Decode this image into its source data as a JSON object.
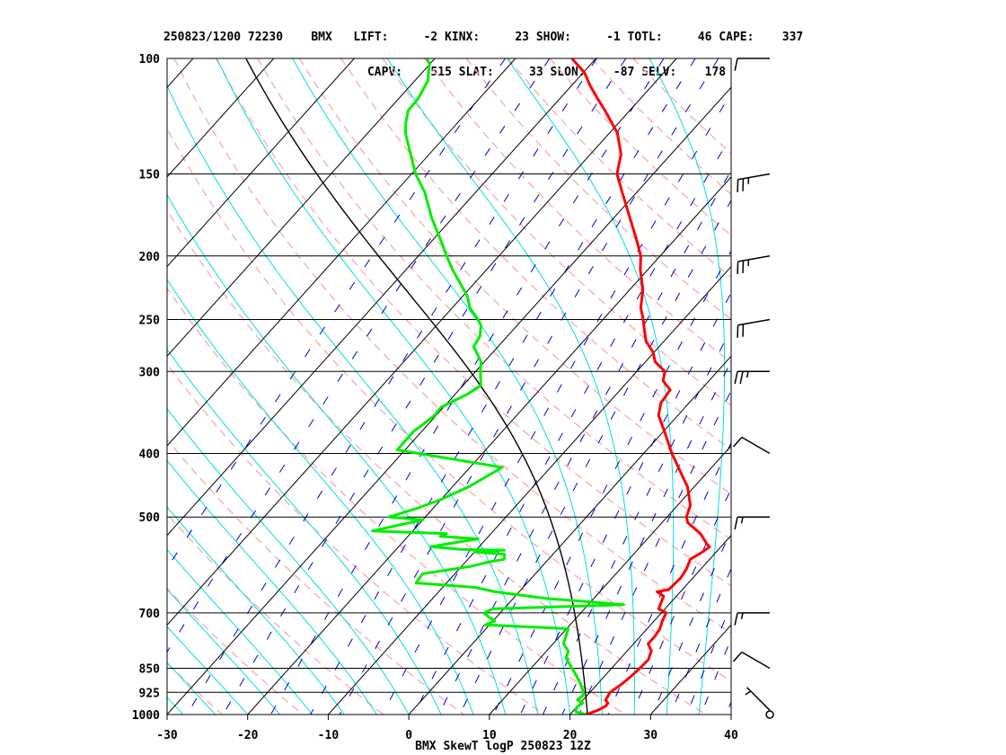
{
  "header": {
    "line1": "250823/1200 72230    BMX   LIFT:     -2 KINX:     23 SHOW:     -1 TOTL:     46 CAPE:    337",
    "line2": "                             CAPV:    515 SLAT:     33 SLON:    -87 SELV:    178"
  },
  "chart_data": {
    "type": "line",
    "title": "BMX SkewT logP 250823 12Z",
    "xlabel": "",
    "ylabel": "",
    "x_ticks": [
      -30,
      -20,
      -10,
      0,
      10,
      20,
      30,
      40
    ],
    "y_ticks": [
      100,
      150,
      200,
      250,
      300,
      400,
      500,
      700,
      850,
      925,
      1000
    ],
    "xlim": [
      -30,
      40
    ],
    "ylim": [
      1000,
      100
    ],
    "y_scale": "log",
    "grid": true,
    "colors": {
      "temperature": "#ff0000",
      "dewpoint": "#00ee00",
      "dry_adiabat": "#ffb0b8",
      "moist_adiabat": "#00e0e0",
      "mixing_ratio": "#0000d0",
      "isotherm": "#000000",
      "parcel": "#000000"
    },
    "series": [
      {
        "key": "temperature",
        "points": [
          [
            1000,
            22.0
          ],
          [
            985,
            23.0
          ],
          [
            970,
            23.5
          ],
          [
            960,
            23.4
          ],
          [
            950,
            22.8
          ],
          [
            925,
            22.5
          ],
          [
            900,
            23.0
          ],
          [
            875,
            23.3
          ],
          [
            850,
            23.5
          ],
          [
            825,
            23.6
          ],
          [
            800,
            23.0
          ],
          [
            780,
            21.8
          ],
          [
            760,
            21.8
          ],
          [
            740,
            21.6
          ],
          [
            720,
            21.0
          ],
          [
            700,
            20.6
          ],
          [
            690,
            19.2
          ],
          [
            675,
            18.8
          ],
          [
            660,
            18.4
          ],
          [
            650,
            17.1
          ],
          [
            645,
            18.3
          ],
          [
            620,
            18.5
          ],
          [
            600,
            18.2
          ],
          [
            580,
            17.6
          ],
          [
            565,
            18.3
          ],
          [
            555,
            18.6
          ],
          [
            550,
            18.0
          ],
          [
            530,
            16.0
          ],
          [
            510,
            13.2
          ],
          [
            500,
            12.4
          ],
          [
            480,
            11.6
          ],
          [
            450,
            9.2
          ],
          [
            400,
            3.5
          ],
          [
            370,
            0.1
          ],
          [
            350,
            -2.4
          ],
          [
            335,
            -3.5
          ],
          [
            320,
            -3.8
          ],
          [
            310,
            -5.7
          ],
          [
            300,
            -6.5
          ],
          [
            290,
            -8.8
          ],
          [
            280,
            -10.2
          ],
          [
            270,
            -12.2
          ],
          [
            260,
            -13.6
          ],
          [
            250,
            -15.0
          ],
          [
            240,
            -16.6
          ],
          [
            225,
            -18.4
          ],
          [
            210,
            -20.9
          ],
          [
            200,
            -22.4
          ],
          [
            190,
            -24.5
          ],
          [
            175,
            -28.0
          ],
          [
            160,
            -31.8
          ],
          [
            150,
            -34.5
          ],
          [
            140,
            -36.2
          ],
          [
            130,
            -39.0
          ],
          [
            120,
            -43.1
          ],
          [
            115,
            -45.4
          ],
          [
            110,
            -47.7
          ],
          [
            105,
            -49.9
          ],
          [
            100,
            -53.0
          ]
        ]
      },
      {
        "key": "dewpoint",
        "points": [
          [
            1000,
            22.0
          ],
          [
            990,
            20.4
          ],
          [
            975,
            20.0
          ],
          [
            960,
            20.3
          ],
          [
            950,
            19.3
          ],
          [
            935,
            19.5
          ],
          [
            925,
            19.2
          ],
          [
            900,
            18.0
          ],
          [
            875,
            16.6
          ],
          [
            850,
            15.1
          ],
          [
            820,
            13.2
          ],
          [
            800,
            12.7
          ],
          [
            780,
            11.3
          ],
          [
            740,
            10.2
          ],
          [
            730,
            -0.5
          ],
          [
            720,
            0.2
          ],
          [
            710,
            -1.0
          ],
          [
            700,
            -2.0
          ],
          [
            690,
            -1.4
          ],
          [
            680,
            14.4
          ],
          [
            665,
            4.0
          ],
          [
            650,
            -3.0
          ],
          [
            640,
            -6.0
          ],
          [
            630,
            -13.8
          ],
          [
            610,
            -14.0
          ],
          [
            595,
            -9.0
          ],
          [
            585,
            -7.0
          ],
          [
            580,
            -5.5
          ],
          [
            570,
            -6.0
          ],
          [
            565,
            -10.0
          ],
          [
            562,
            -6.5
          ],
          [
            560,
            -12.0
          ],
          [
            555,
            -16.0
          ],
          [
            550,
            -14.5
          ],
          [
            540,
            -11.0
          ],
          [
            535,
            -16.0
          ],
          [
            530,
            -15.5
          ],
          [
            525,
            -25.0
          ],
          [
            505,
            -20.0
          ],
          [
            500,
            -24.5
          ],
          [
            485,
            -22.0
          ],
          [
            470,
            -20.0
          ],
          [
            450,
            -18.0
          ],
          [
            420,
            -16.0
          ],
          [
            395,
            -31.0
          ],
          [
            370,
            -31.0
          ],
          [
            350,
            -30.2
          ],
          [
            340,
            -30.3
          ],
          [
            325,
            -28.5
          ],
          [
            315,
            -27.8
          ],
          [
            300,
            -29.4
          ],
          [
            290,
            -30.4
          ],
          [
            275,
            -33.0
          ],
          [
            265,
            -33.4
          ],
          [
            255,
            -34.5
          ],
          [
            250,
            -35.5
          ],
          [
            240,
            -37.8
          ],
          [
            230,
            -39.5
          ],
          [
            220,
            -41.8
          ],
          [
            210,
            -44.2
          ],
          [
            200,
            -46.5
          ],
          [
            190,
            -48.8
          ],
          [
            175,
            -52.6
          ],
          [
            160,
            -56.3
          ],
          [
            150,
            -59.5
          ],
          [
            140,
            -62.3
          ],
          [
            130,
            -65.3
          ],
          [
            125,
            -66.5
          ],
          [
            120,
            -67.5
          ],
          [
            115,
            -67.6
          ],
          [
            108,
            -68.4
          ],
          [
            103,
            -69.8
          ],
          [
            102,
            -70.0
          ],
          [
            100,
            -71.0
          ]
        ]
      }
    ],
    "winds": [
      {
        "p": 1000,
        "dir": 0,
        "spd": 0
      },
      {
        "p": 985,
        "dir": 315,
        "spd": 5
      },
      {
        "p": 850,
        "dir": 300,
        "spd": 10
      },
      {
        "p": 700,
        "dir": 270,
        "spd": 15
      },
      {
        "p": 500,
        "dir": 270,
        "spd": 15
      },
      {
        "p": 400,
        "dir": 300,
        "spd": 10
      },
      {
        "p": 300,
        "dir": 270,
        "spd": 25
      },
      {
        "p": 250,
        "dir": 260,
        "spd": 20
      },
      {
        "p": 200,
        "dir": 260,
        "spd": 25
      },
      {
        "p": 150,
        "dir": 260,
        "spd": 25
      },
      {
        "p": 100,
        "dir": 270,
        "spd": 10
      }
    ]
  }
}
